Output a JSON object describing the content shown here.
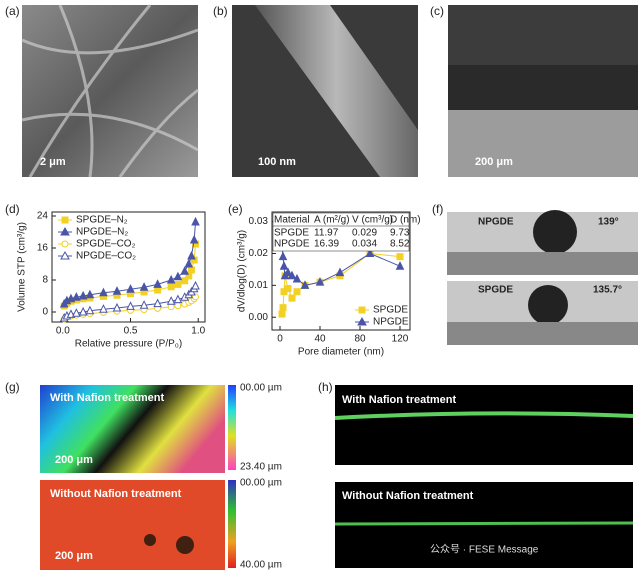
{
  "panels": {
    "labels": [
      "(a)",
      "(b)",
      "(c)",
      "(d)",
      "(e)",
      "(f)",
      "(g)",
      "(h)"
    ]
  },
  "sem": [
    {
      "scale": "2 μm"
    },
    {
      "scale": "100 nm"
    },
    {
      "scale": "200 μm"
    }
  ],
  "contact_angle": {
    "np_label": "NPGDE",
    "np_angle": "139°",
    "sp_label": "SPGDE",
    "sp_angle": "135.7°"
  },
  "confocal": {
    "top_title": "With Nafion treatment",
    "bottom_title": "Without Nafion treatment",
    "top_scale": "200 μm",
    "bottom_scale": "200 μm",
    "top_bar": [
      "00.00 µm",
      "23.40 µm"
    ],
    "bottom_bar": [
      "00.00 µm",
      "40.00 µm"
    ]
  },
  "profile": {
    "top_title": "With Nafion treatment",
    "bottom_title": "Without Nafion treatment"
  },
  "watermark": "公众号 · FESE Message",
  "chart_data": [
    {
      "type": "line",
      "xlabel": "Relative pressure (P/P₀)",
      "ylabel": "Volume STP (cm³/g)",
      "xlim": [
        -0.08,
        1.05
      ],
      "ylim": [
        -2.5,
        25
      ],
      "xticks": [
        {
          "value": 0,
          "label": "0.0"
        },
        0.5,
        {
          "value": 1,
          "label": "1.0"
        }
      ],
      "yticks": [
        0,
        8,
        16,
        24
      ],
      "legend": "upper left",
      "x": [
        0.01,
        0.03,
        0.06,
        0.1,
        0.15,
        0.2,
        0.3,
        0.4,
        0.5,
        0.6,
        0.7,
        0.8,
        0.85,
        0.9,
        0.93,
        0.95,
        0.97,
        0.98
      ],
      "series": [
        {
          "name": "SPGDE–N₂",
          "color": "#f2d024",
          "marker": "square",
          "filled": true,
          "values": [
            1.5,
            2.2,
            2.7,
            3,
            3.3,
            3.5,
            3.9,
            4.2,
            4.6,
            5,
            5.5,
            6.3,
            6.9,
            7.8,
            9,
            10.5,
            13,
            17
          ]
        },
        {
          "name": "NPGDE–N₂",
          "color": "#4a55a8",
          "marker": "triangle",
          "filled": true,
          "values": [
            2,
            2.8,
            3.3,
            3.7,
            4,
            4.3,
            4.8,
            5.2,
            5.7,
            6.2,
            6.9,
            8,
            8.8,
            10.2,
            12,
            14,
            18,
            22.5
          ]
        },
        {
          "name": "SPGDE–CO₂",
          "color": "#f2d024",
          "marker": "circle",
          "filled": false,
          "values": [
            -1.8,
            -1.3,
            -1,
            -0.8,
            -0.6,
            -0.4,
            -0.1,
            0.2,
            0.4,
            0.6,
            0.9,
            1.3,
            1.6,
            2,
            2.4,
            2.8,
            3.3,
            3.8
          ]
        },
        {
          "name": "NPGDE–CO₂",
          "color": "#4a55a8",
          "marker": "triangle",
          "filled": false,
          "values": [
            -1.5,
            -1,
            -0.6,
            -0.3,
            0,
            0.3,
            0.7,
            1,
            1.4,
            1.7,
            2.1,
            2.7,
            3.1,
            3.7,
            4.3,
            5,
            5.8,
            6.5
          ]
        }
      ]
    },
    {
      "type": "line",
      "xlabel": "Pore diameter (nm)",
      "ylabel": "dV/dlog(D) (cm³/g)",
      "xlim": [
        -8,
        130
      ],
      "ylim": [
        -0.004,
        0.033
      ],
      "xticks": [
        0,
        40,
        80,
        120
      ],
      "yticks": [
        {
          "value": 0,
          "label": "0.00"
        },
        0.01,
        0.02,
        0.03
      ],
      "legend": "lower right",
      "x": [
        2,
        3,
        4,
        5,
        8,
        12,
        17,
        25,
        40,
        60,
        90,
        120
      ],
      "series": [
        {
          "name": "SPGDE",
          "color": "#f2d024",
          "marker": "square",
          "filled": true,
          "values": [
            0.001,
            0.003,
            0.008,
            0.013,
            0.009,
            0.006,
            0.008,
            0.01,
            0.011,
            0.013,
            0.02,
            0.019
          ]
        },
        {
          "name": "NPGDE",
          "color": "#4a55a8",
          "marker": "triangle",
          "filled": true,
          "values": [
            0.022,
            0.019,
            0.016,
            0.013,
            0.014,
            0.013,
            0.012,
            0.01,
            0.011,
            0.014,
            0.02,
            0.016
          ]
        }
      ],
      "table": {
        "header": [
          "Material",
          "A (m²/g)",
          "V (cm³/g)",
          "D (nm)"
        ],
        "rows": [
          [
            "SPGDE",
            "11.97",
            "0.029",
            "9.73"
          ],
          [
            "NPGDE",
            "16.39",
            "0.034",
            "8.52"
          ]
        ]
      }
    }
  ]
}
